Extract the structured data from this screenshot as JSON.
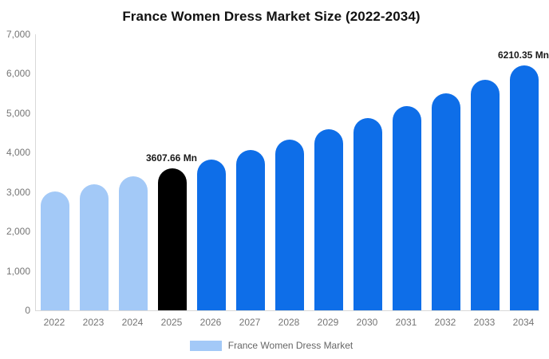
{
  "chart_data": {
    "type": "bar",
    "title": "France Women Dress Market Size (2022-2034)",
    "unit": "Mn",
    "categories": [
      "2022",
      "2023",
      "2024",
      "2025",
      "2026",
      "2027",
      "2028",
      "2029",
      "2030",
      "2031",
      "2032",
      "2033",
      "2034"
    ],
    "values": [
      3010,
      3197,
      3396,
      3607.66,
      3832,
      4070,
      4324,
      4593,
      4878,
      5182,
      5504,
      5847,
      6210.35
    ],
    "bar_colors": [
      "#A3C9F7",
      "#A3C9F7",
      "#A3C9F7",
      "#000000",
      "#0E6EE8",
      "#0E6EE8",
      "#0E6EE8",
      "#0E6EE8",
      "#0E6EE8",
      "#0E6EE8",
      "#0E6EE8",
      "#0E6EE8",
      "#0E6EE8"
    ],
    "highlight_labels": [
      {
        "index": 3,
        "text": "3607.66 Mn"
      },
      {
        "index": 12,
        "text": "6210.35 Mn"
      }
    ],
    "xlabel": "",
    "ylabel": "",
    "ylim": [
      0,
      7000
    ],
    "yticks": [
      {
        "label": "0",
        "value": 0
      },
      {
        "label": "1,000",
        "value": 1000
      },
      {
        "label": "2,000",
        "value": 2000
      },
      {
        "label": "3,000",
        "value": 3000
      },
      {
        "label": "4,000",
        "value": 4000
      },
      {
        "label": "5,000",
        "value": 5000
      },
      {
        "label": "6,000",
        "value": 6000
      },
      {
        "label": "7,000",
        "value": 7000
      }
    ],
    "grid": false,
    "legend_position": "bottom",
    "legend_entries": [
      {
        "label": "France Women Dress Market",
        "color": "#A3C9F7"
      }
    ]
  },
  "colors": {
    "axis_line": "#d9d9d9",
    "tick_text": "#757575",
    "value_label": "#1a1a1a",
    "title_text": "#111111",
    "legend_text": "#666666",
    "background": "#ffffff"
  }
}
